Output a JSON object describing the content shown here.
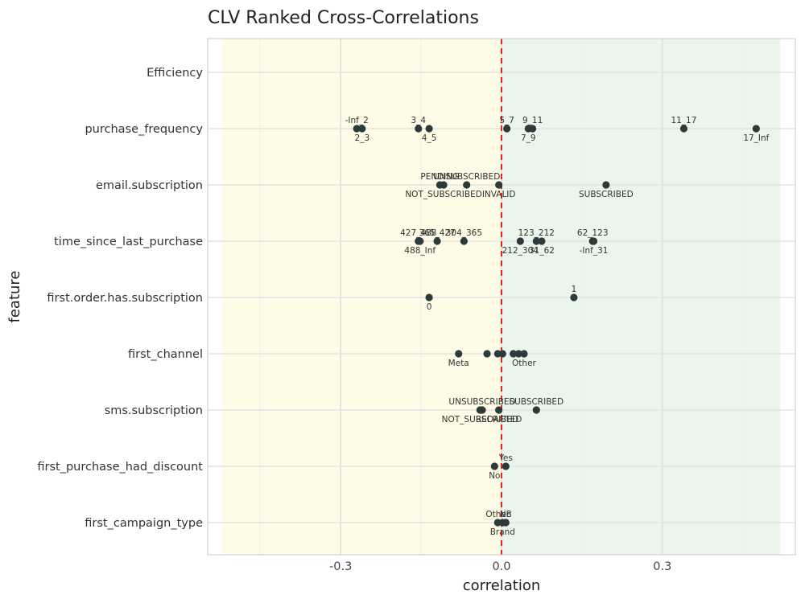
{
  "chart_data": {
    "type": "scatter",
    "title": "CLV Ranked Cross-Correlations",
    "xlabel": "correlation",
    "ylabel": "feature",
    "xlim": [
      -0.52,
      0.52
    ],
    "xticks": [
      -0.3,
      0.0,
      0.3
    ],
    "xtick_labels": [
      "-0.3",
      "0.0",
      "0.3"
    ],
    "reference_line": {
      "x": 0.0,
      "style": "dashed",
      "color": "#e8231f"
    },
    "negative_region": {
      "from": -0.52,
      "to": 0.0,
      "color": "#fefbe6"
    },
    "positive_region": {
      "from": 0.0,
      "to": 0.52,
      "color": "#eaf6ec"
    },
    "grid": true,
    "point_color": "#2b3a3a",
    "categories": [
      "Efficiency",
      "purchase_frequency",
      "email.subscription",
      "time_since_last_purchase",
      "first.order.has.subscription",
      "first_channel",
      "sms.subscription",
      "first_purchase_had_discount",
      "first_campaign_type"
    ],
    "series": [
      {
        "category": "Efficiency",
        "points": []
      },
      {
        "category": "purchase_frequency",
        "points": [
          {
            "x": -0.27,
            "label": "-Inf_2",
            "pos": "above"
          },
          {
            "x": -0.26,
            "label": "2_3",
            "pos": "below"
          },
          {
            "x": -0.155,
            "label": "3_4",
            "pos": "above"
          },
          {
            "x": -0.135,
            "label": "4_5",
            "pos": "below"
          },
          {
            "x": 0.01,
            "label": "5_7",
            "pos": "above"
          },
          {
            "x": 0.05,
            "label": "7_9",
            "pos": "below"
          },
          {
            "x": 0.058,
            "label": "9_11",
            "pos": "above"
          },
          {
            "x": 0.34,
            "label": "11_17",
            "pos": "above"
          },
          {
            "x": 0.475,
            "label": "17_Inf",
            "pos": "below"
          }
        ]
      },
      {
        "category": "email.subscription",
        "points": [
          {
            "x": -0.115,
            "label": "PENDING",
            "pos": "above"
          },
          {
            "x": -0.108,
            "label": "NOT_SUBSCRIBED",
            "pos": "below"
          },
          {
            "x": -0.065,
            "label": "UNSUBSCRIBED",
            "pos": "above"
          },
          {
            "x": -0.005,
            "label": "INVALID",
            "pos": "below"
          },
          {
            "x": 0.195,
            "label": "SUBSCRIBED",
            "pos": "below"
          }
        ]
      },
      {
        "category": "time_since_last_purchase",
        "points": [
          {
            "x": -0.155,
            "label": "427_488",
            "pos": "above"
          },
          {
            "x": -0.152,
            "label": "488_Inf",
            "pos": "below"
          },
          {
            "x": -0.12,
            "label": "365_427",
            "pos": "above"
          },
          {
            "x": -0.07,
            "label": "304_365",
            "pos": "above"
          },
          {
            "x": 0.035,
            "label": "212_304",
            "pos": "below"
          },
          {
            "x": 0.065,
            "label": "123_212",
            "pos": "above"
          },
          {
            "x": 0.075,
            "label": "31_62",
            "pos": "below"
          },
          {
            "x": 0.17,
            "label": "62_123",
            "pos": "above"
          },
          {
            "x": 0.172,
            "label": "-Inf_31",
            "pos": "below"
          }
        ]
      },
      {
        "category": "first.order.has.subscription",
        "points": [
          {
            "x": -0.135,
            "label": "0",
            "pos": "below"
          },
          {
            "x": 0.135,
            "label": "1",
            "pos": "above"
          }
        ]
      },
      {
        "category": "first_channel",
        "points": [
          {
            "x": -0.08,
            "label": "Meta",
            "pos": "below"
          },
          {
            "x": -0.027,
            "label": "",
            "pos": "none"
          },
          {
            "x": -0.007,
            "label": "",
            "pos": "none"
          },
          {
            "x": 0.002,
            "label": "",
            "pos": "none"
          },
          {
            "x": 0.022,
            "label": "",
            "pos": "none"
          },
          {
            "x": 0.032,
            "label": "",
            "pos": "none"
          },
          {
            "x": 0.042,
            "label": "Other",
            "pos": "below"
          }
        ]
      },
      {
        "category": "sms.subscription",
        "points": [
          {
            "x": -0.04,
            "label": "NOT_SUBSCRIBED",
            "pos": "below"
          },
          {
            "x": -0.036,
            "label": "UNSUBSCRIBED",
            "pos": "above"
          },
          {
            "x": -0.005,
            "label": "REDACTED",
            "pos": "below"
          },
          {
            "x": 0.065,
            "label": "SUBSCRIBED",
            "pos": "above"
          }
        ]
      },
      {
        "category": "first_purchase_had_discount",
        "points": [
          {
            "x": -0.013,
            "label": "No",
            "pos": "below"
          },
          {
            "x": 0.008,
            "label": "Yes",
            "pos": "above"
          }
        ]
      },
      {
        "category": "first_campaign_type",
        "points": [
          {
            "x": -0.007,
            "label": "Other",
            "pos": "above"
          },
          {
            "x": 0.002,
            "label": "Brand",
            "pos": "below"
          },
          {
            "x": 0.008,
            "label": "NB",
            "pos": "above"
          }
        ]
      }
    ]
  }
}
